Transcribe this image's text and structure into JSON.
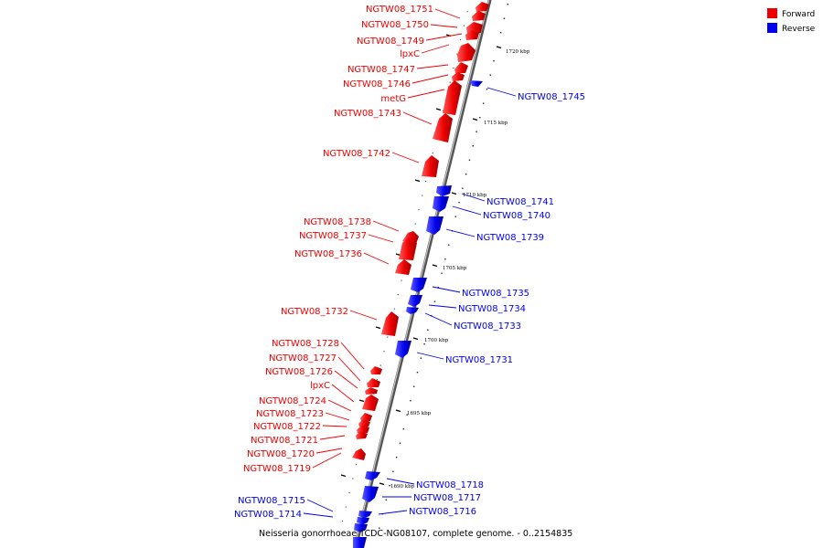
{
  "legend": {
    "forward_label": "Forward",
    "reverse_label": "Reverse",
    "forward_color": "#ee0000",
    "reverse_color": "#0000ee"
  },
  "caption": "Neisseria gonorrhoeae TCDC-NG08107, complete genome. - 0..2154835",
  "scale_labels": [
    "1720 kbp",
    "1715 kbp",
    "1710 kbp",
    "1705 kbp",
    "1700 kbp",
    "1695 kbp",
    "1690 kbp"
  ],
  "forward_genes": [
    "NGTW08_1751",
    "NGTW08_1750",
    "NGTW08_1749",
    "lpxC",
    "NGTW08_1747",
    "NGTW08_1746",
    "metG",
    "NGTW08_1743",
    "NGTW08_1742",
    "NGTW08_1738",
    "NGTW08_1737",
    "NGTW08_1736",
    "NGTW08_1732",
    "NGTW08_1728",
    "NGTW08_1727",
    "NGTW08_1726",
    "lpxC",
    "NGTW08_1724",
    "NGTW08_1723",
    "NGTW08_1722",
    "NGTW08_1721",
    "NGTW08_1720",
    "NGTW08_1719"
  ],
  "reverse_genes": [
    "NGTW08_1745",
    "NGTW08_1741",
    "NGTW08_1740",
    "NGTW08_1739",
    "NGTW08_1735",
    "NGTW08_1734",
    "NGTW08_1733",
    "NGTW08_1731",
    "NGTW08_1718",
    "NGTW08_1717",
    "NGTW08_1716",
    "NGTW08_1715",
    "NGTW08_1714"
  ]
}
